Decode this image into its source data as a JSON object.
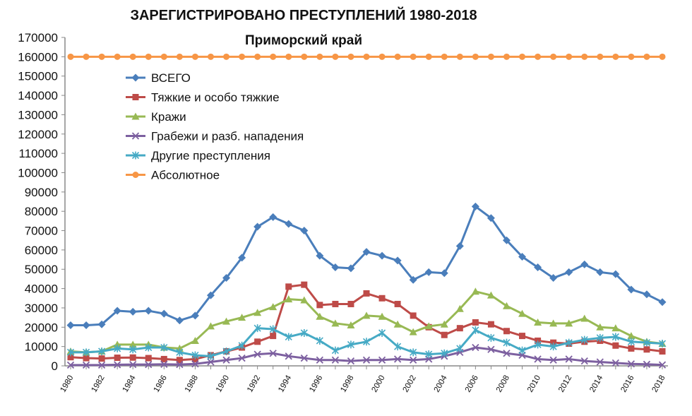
{
  "chart_data": {
    "type": "line",
    "title": "ЗАРЕГИСТРИРОВАНО ПРЕСТУПЛЕНИЙ 1980-2018",
    "subtitle": "Приморский край",
    "xlabel": "",
    "ylabel": "",
    "ylim": [
      0,
      170000
    ],
    "y_ticks": [
      "0",
      "10000",
      "20000",
      "30000",
      "40000",
      "50000",
      "60000",
      "70000",
      "80000",
      "90000",
      "100000",
      "110000",
      "120000",
      "130000",
      "140000",
      "150000",
      "160000",
      "170000"
    ],
    "x": [
      1980,
      1981,
      1982,
      1983,
      1984,
      1985,
      1986,
      1987,
      1988,
      1989,
      1990,
      1991,
      1992,
      1993,
      1994,
      1995,
      1996,
      1997,
      1998,
      1999,
      2000,
      2001,
      2002,
      2003,
      2004,
      2005,
      2006,
      2007,
      2008,
      2009,
      2010,
      2011,
      2012,
      2013,
      2014,
      2015,
      2016,
      2017,
      2018
    ],
    "x_tick_labels": [
      "1980",
      "1982",
      "1984",
      "1986",
      "1988",
      "1990",
      "1992",
      "1994",
      "1996",
      "1998",
      "2000",
      "2002",
      "2004",
      "2006",
      "2008",
      "2010",
      "2012",
      "2014",
      "2016",
      "2018"
    ],
    "grid": false,
    "legend_position": "top-left",
    "series": [
      {
        "name": "ВСЕГО",
        "color": "#4A7EBB",
        "marker": "diamond",
        "values": [
          21000,
          21000,
          21500,
          28500,
          28000,
          28500,
          27000,
          23500,
          26000,
          36500,
          45500,
          56000,
          72000,
          77000,
          73500,
          70000,
          57000,
          51000,
          50500,
          59000,
          57000,
          54500,
          44500,
          48500,
          48000,
          62000,
          82500,
          76500,
          65000,
          56500,
          51000,
          45500,
          48500,
          52500,
          48500,
          47500,
          39500,
          37000,
          33000
        ]
      },
      {
        "name": "Тяжкие и особо тяжкие",
        "color": "#BE4B48",
        "marker": "square",
        "values": [
          4500,
          4000,
          3800,
          4200,
          4300,
          4000,
          3500,
          3000,
          3500,
          5500,
          7500,
          9500,
          12500,
          15500,
          41000,
          42000,
          31500,
          32000,
          32000,
          37500,
          35000,
          32000,
          26000,
          20000,
          16000,
          19500,
          22500,
          21500,
          18000,
          15500,
          13000,
          12000,
          11500,
          12500,
          13000,
          10500,
          9000,
          8500,
          7500
        ]
      },
      {
        "name": "Кражи",
        "color": "#98B954",
        "marker": "triangle",
        "values": [
          7500,
          7000,
          7500,
          11000,
          11000,
          11000,
          9500,
          9000,
          13000,
          20500,
          23000,
          25000,
          27500,
          30500,
          34500,
          34000,
          25500,
          22000,
          21000,
          26000,
          25500,
          21500,
          17500,
          20500,
          21500,
          29500,
          38500,
          36500,
          31000,
          27000,
          22500,
          22000,
          22000,
          24500,
          20000,
          19500,
          15500,
          12500,
          11500
        ]
      },
      {
        "name": "Грабежи и разб. нападения",
        "color": "#7D60A0",
        "marker": "x",
        "values": [
          400,
          400,
          400,
          600,
          700,
          700,
          800,
          700,
          1000,
          2000,
          3000,
          4000,
          6000,
          6500,
          5000,
          4000,
          3000,
          3000,
          2500,
          3000,
          3000,
          3500,
          3000,
          3500,
          5000,
          7000,
          9500,
          8500,
          6500,
          5500,
          3500,
          3000,
          3500,
          2500,
          2000,
          1500,
          1000,
          800,
          500
        ]
      },
      {
        "name": "Другие преступления",
        "color": "#46AAC5",
        "marker": "asterisk",
        "values": [
          7000,
          7000,
          7500,
          9000,
          8500,
          9500,
          9500,
          7000,
          5500,
          5000,
          7500,
          10500,
          19500,
          19000,
          15000,
          17000,
          13000,
          8000,
          11000,
          12500,
          17000,
          10000,
          7000,
          6000,
          6500,
          9000,
          18500,
          14500,
          12000,
          8000,
          11000,
          10000,
          12000,
          13500,
          14500,
          15000,
          12500,
          12000,
          11500
        ]
      },
      {
        "name": "Абсолютное",
        "color": "#F79646",
        "marker": "circle",
        "values": [
          160000,
          160000,
          160000,
          160000,
          160000,
          160000,
          160000,
          160000,
          160000,
          160000,
          160000,
          160000,
          160000,
          160000,
          160000,
          160000,
          160000,
          160000,
          160000,
          160000,
          160000,
          160000,
          160000,
          160000,
          160000,
          160000,
          160000,
          160000,
          160000,
          160000,
          160000,
          160000,
          160000,
          160000,
          160000,
          160000,
          160000,
          160000,
          160000
        ]
      }
    ]
  }
}
